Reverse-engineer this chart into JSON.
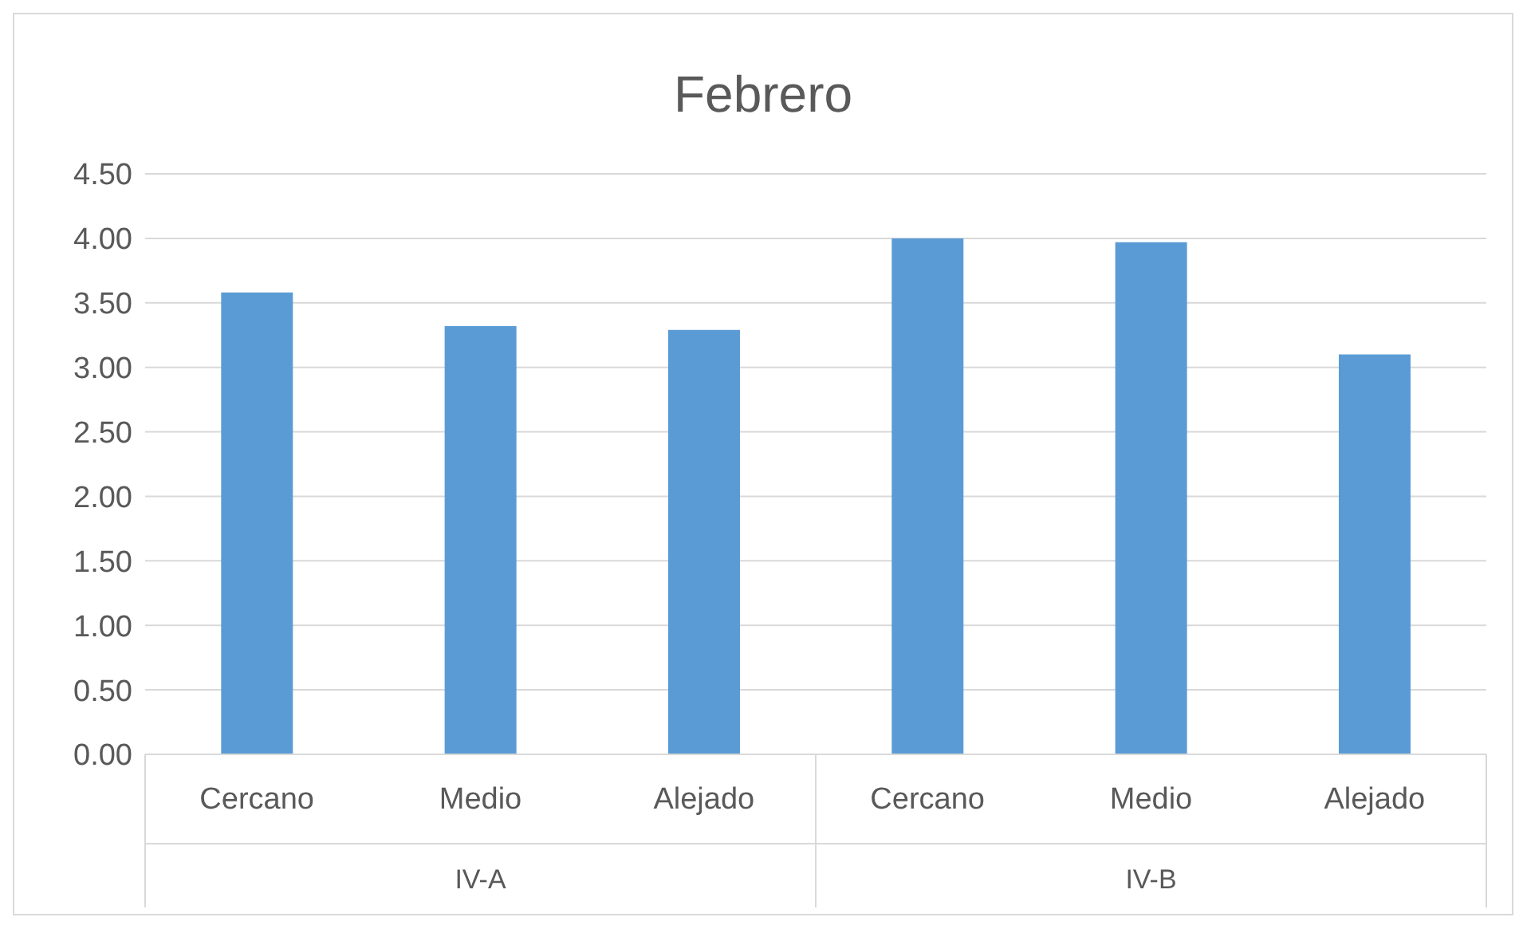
{
  "chart_data": {
    "type": "bar",
    "title": "Febrero",
    "categories": [
      "Cercano",
      "Medio",
      "Alejado",
      "Cercano",
      "Medio",
      "Alejado"
    ],
    "values": [
      3.58,
      3.32,
      3.29,
      4.0,
      3.97,
      3.1
    ],
    "color": "#5b9bd5",
    "annotations": [
      "IV-A",
      "IV-B"
    ],
    "ylim": [
      0,
      4.5
    ],
    "yticks": [
      {
        "value": 0,
        "label": "0.00"
      },
      {
        "value": 0.5,
        "label": "0.50"
      },
      {
        "value": 1,
        "label": "1.00"
      },
      {
        "value": 1.5,
        "label": "1.50"
      },
      {
        "value": 2,
        "label": "2.00"
      },
      {
        "value": 2.5,
        "label": "2.50"
      },
      {
        "value": 3,
        "label": "3.00"
      },
      {
        "value": 3.5,
        "label": "3.50"
      },
      {
        "value": 4,
        "label": "4.00"
      },
      {
        "value": 4.5,
        "label": "4.50"
      }
    ],
    "grid": "y",
    "legend": false
  }
}
